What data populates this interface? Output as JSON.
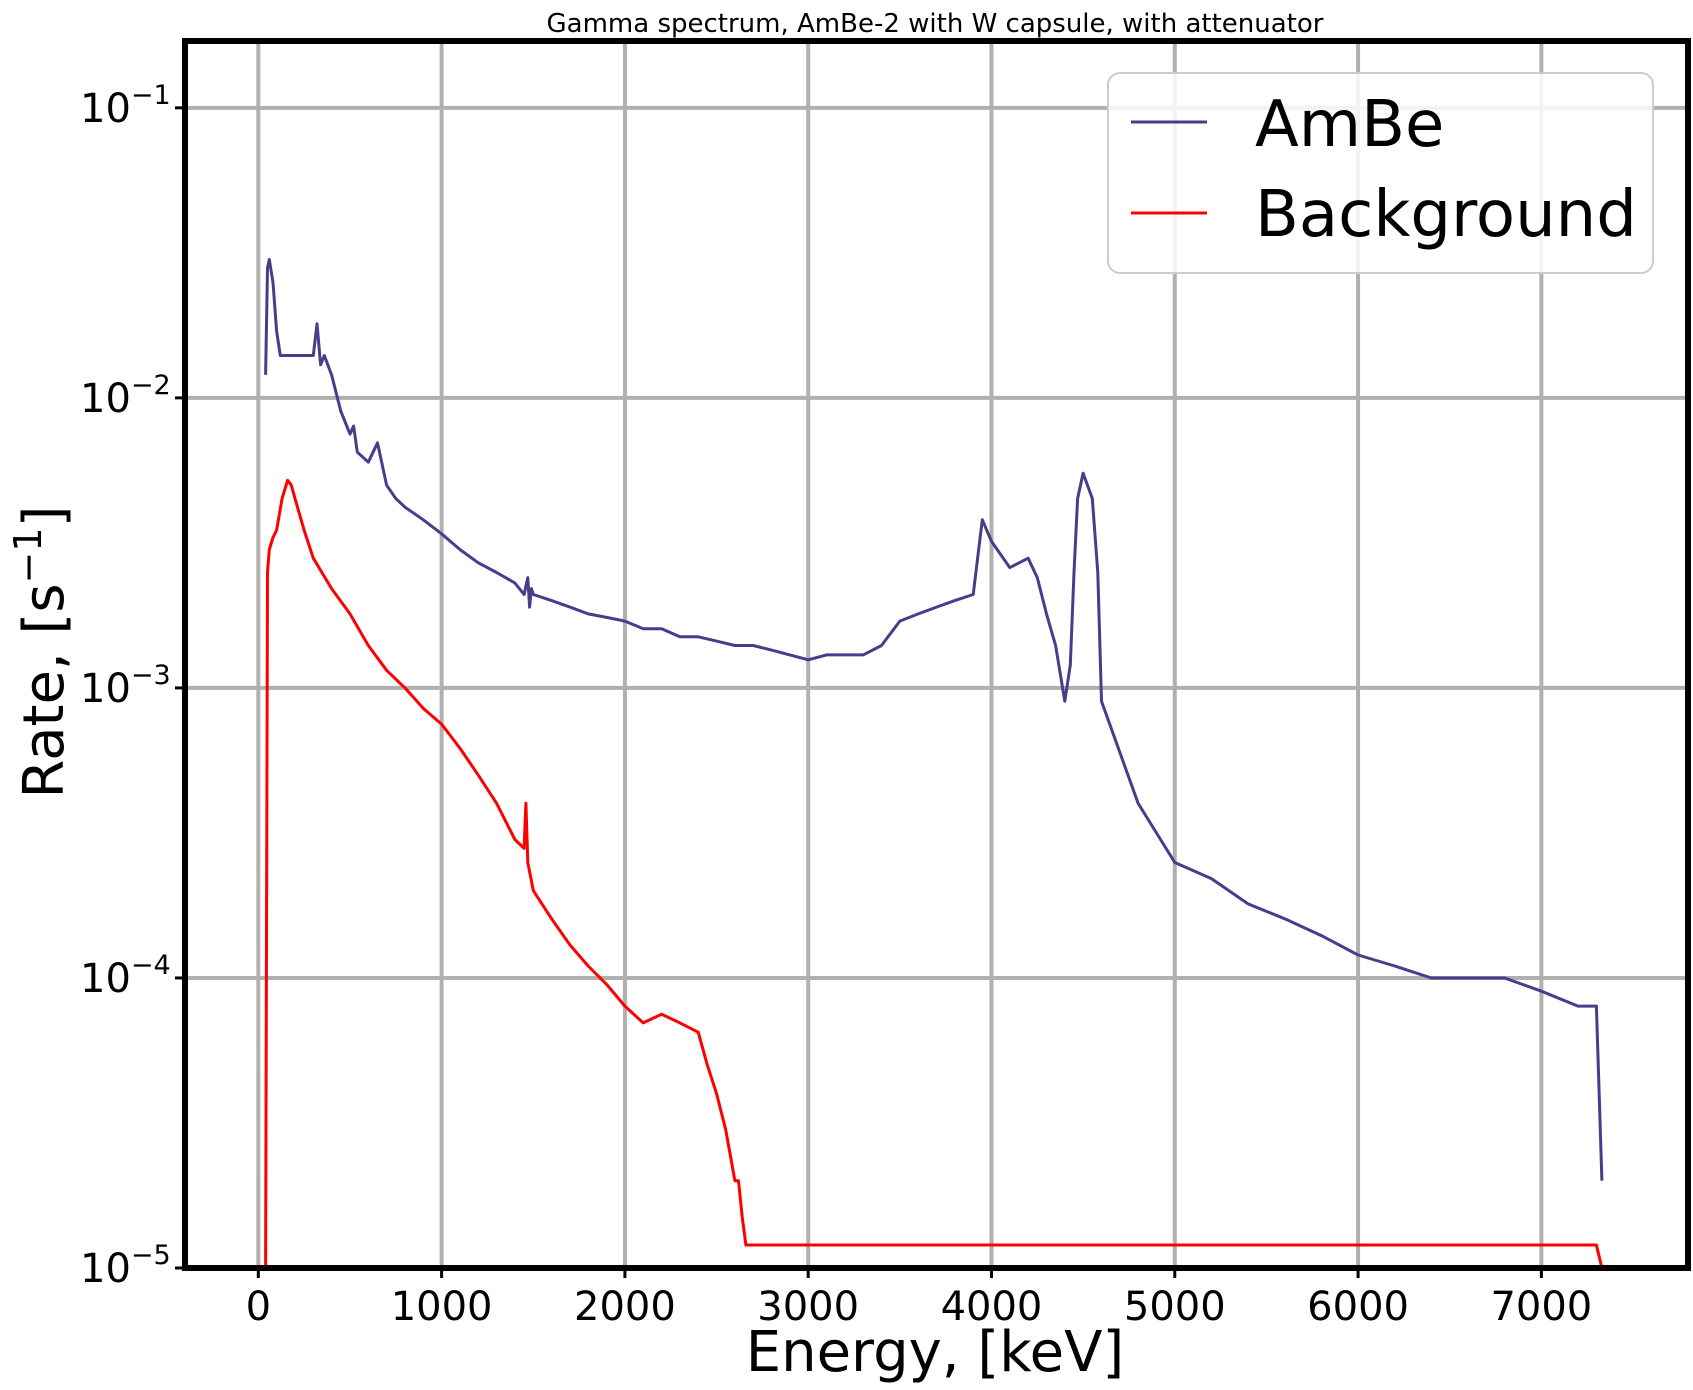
{
  "chart_data": {
    "type": "line",
    "title": "Gamma spectrum, AmBe-2 with W capsule, with attenuator",
    "xlabel": "Energy, [keV]",
    "ylabel_base": "Rate, [s",
    "ylabel_sup": "−1",
    "ylabel_end": "]",
    "xlim": [
      -400,
      7800
    ],
    "ylim": [
      1e-05,
      0.17
    ],
    "yscale": "log",
    "grid": true,
    "legend_position": "top-right",
    "x_ticks": [
      {
        "value": 0,
        "label": "0"
      },
      {
        "value": 1000,
        "label": "1000"
      },
      {
        "value": 2000,
        "label": "2000"
      },
      {
        "value": 3000,
        "label": "3000"
      },
      {
        "value": 4000,
        "label": "4000"
      },
      {
        "value": 5000,
        "label": "5000"
      },
      {
        "value": 6000,
        "label": "6000"
      },
      {
        "value": 7000,
        "label": "7000"
      }
    ],
    "y_ticks": [
      {
        "value": 0.1,
        "base": "10",
        "exp": "−1"
      },
      {
        "value": 0.01,
        "base": "10",
        "exp": "−2"
      },
      {
        "value": 0.001,
        "base": "10",
        "exp": "−3"
      },
      {
        "value": 0.0001,
        "base": "10",
        "exp": "−4"
      },
      {
        "value": 1e-05,
        "base": "10",
        "exp": "−5"
      }
    ],
    "series": [
      {
        "name": "AmBe",
        "color": "#483d8b",
        "x": [
          40,
          50,
          60,
          80,
          100,
          120,
          150,
          200,
          250,
          300,
          320,
          340,
          360,
          400,
          450,
          500,
          520,
          540,
          600,
          650,
          700,
          750,
          800,
          900,
          1000,
          1100,
          1200,
          1300,
          1400,
          1450,
          1470,
          1480,
          1490,
          1500,
          1600,
          1700,
          1800,
          1900,
          2000,
          2100,
          2200,
          2300,
          2400,
          2500,
          2600,
          2700,
          2800,
          2900,
          3000,
          3100,
          3200,
          3300,
          3400,
          3500,
          3600,
          3700,
          3800,
          3900,
          3950,
          4000,
          4100,
          4200,
          4250,
          4300,
          4350,
          4400,
          4430,
          4450,
          4470,
          4500,
          4550,
          4580,
          4600,
          4700,
          4800,
          5000,
          5200,
          5400,
          5600,
          5800,
          6000,
          6200,
          6400,
          6600,
          6800,
          7000,
          7200,
          7300,
          7330
        ],
        "values": [
          0.012,
          0.028,
          0.03,
          0.025,
          0.017,
          0.014,
          0.014,
          0.014,
          0.014,
          0.014,
          0.018,
          0.013,
          0.014,
          0.012,
          0.009,
          0.0075,
          0.008,
          0.0065,
          0.006,
          0.007,
          0.005,
          0.0045,
          0.0042,
          0.0038,
          0.0034,
          0.003,
          0.0027,
          0.0025,
          0.0023,
          0.0021,
          0.0024,
          0.0019,
          0.0022,
          0.0021,
          0.002,
          0.0019,
          0.0018,
          0.00175,
          0.0017,
          0.0016,
          0.0016,
          0.0015,
          0.0015,
          0.00145,
          0.0014,
          0.0014,
          0.00135,
          0.0013,
          0.00125,
          0.0013,
          0.0013,
          0.0013,
          0.0014,
          0.0017,
          0.0018,
          0.0019,
          0.002,
          0.0021,
          0.0038,
          0.0032,
          0.0026,
          0.0028,
          0.0024,
          0.0018,
          0.0014,
          0.0009,
          0.0012,
          0.0025,
          0.0045,
          0.0055,
          0.0045,
          0.0025,
          0.0009,
          0.0006,
          0.0004,
          0.00025,
          0.00022,
          0.00018,
          0.00016,
          0.00014,
          0.00012,
          0.00011,
          0.0001,
          0.0001,
          0.0001,
          9e-05,
          8e-05,
          8e-05,
          2e-05
        ]
      },
      {
        "name": "Background",
        "color": "#ff0000",
        "x": [
          40,
          50,
          60,
          80,
          100,
          130,
          160,
          180,
          200,
          250,
          300,
          400,
          500,
          600,
          700,
          800,
          900,
          1000,
          1100,
          1200,
          1300,
          1400,
          1450,
          1460,
          1470,
          1500,
          1600,
          1700,
          1800,
          1900,
          2000,
          2100,
          2200,
          2300,
          2400,
          2450,
          2500,
          2550,
          2600,
          2620,
          2640,
          2660,
          2700,
          3000,
          3500,
          4000,
          4500,
          5000,
          5500,
          6000,
          6500,
          7000,
          7300,
          7330
        ],
        "values": [
          1e-05,
          0.0025,
          0.003,
          0.0033,
          0.0035,
          0.0045,
          0.0052,
          0.005,
          0.0045,
          0.0035,
          0.0028,
          0.0022,
          0.0018,
          0.0014,
          0.00115,
          0.001,
          0.00085,
          0.00075,
          0.00062,
          0.0005,
          0.0004,
          0.0003,
          0.00028,
          0.0004,
          0.00025,
          0.0002,
          0.00016,
          0.00013,
          0.00011,
          9.5e-05,
          8e-05,
          7e-05,
          7.5e-05,
          7e-05,
          6.5e-05,
          5e-05,
          4e-05,
          3e-05,
          2e-05,
          2e-05,
          1.5e-05,
          1.2e-05,
          1.2e-05,
          1.2e-05,
          1.2e-05,
          1.2e-05,
          1.2e-05,
          1.2e-05,
          1.2e-05,
          1.2e-05,
          1.2e-05,
          1.2e-05,
          1.2e-05,
          1e-05
        ]
      }
    ]
  }
}
